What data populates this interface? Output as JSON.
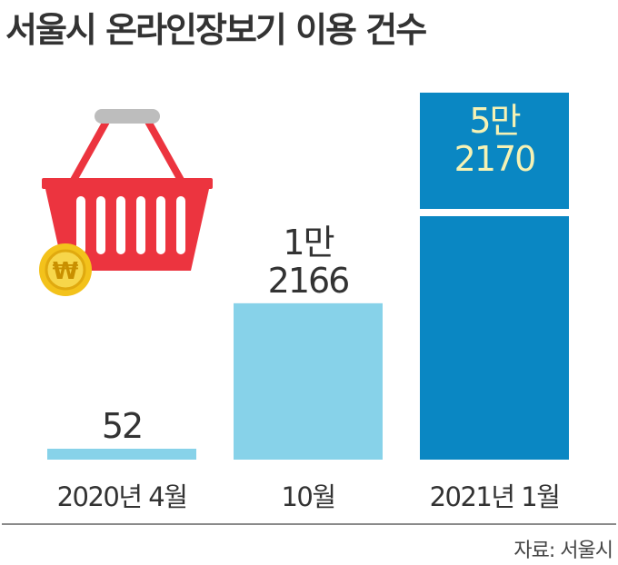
{
  "title": "서울시 온라인장보기 이용 건수",
  "source": "자료: 서울시",
  "coin_symbol": "₩",
  "colors": {
    "bar_light": "#87d2e9",
    "bar_dark": "#0a87c3",
    "label_dark": "#333333",
    "label_on_dark": "#f6f2b4",
    "basket_red": "#ec343f",
    "coin_yellow": "#f3c21b"
  },
  "chart_data": {
    "type": "bar",
    "title": "서울시 온라인장보기 이용 건수",
    "xlabel": "",
    "ylabel": "",
    "categories": [
      "2020년 4월",
      "10월",
      "2021년 1월"
    ],
    "values": [
      52,
      12166,
      52170
    ],
    "value_labels": [
      [
        "52"
      ],
      [
        "1만",
        "2166"
      ],
      [
        "5만",
        "2170"
      ]
    ],
    "axis_break_on_last_bar": true,
    "grid": false,
    "legend": "none"
  }
}
